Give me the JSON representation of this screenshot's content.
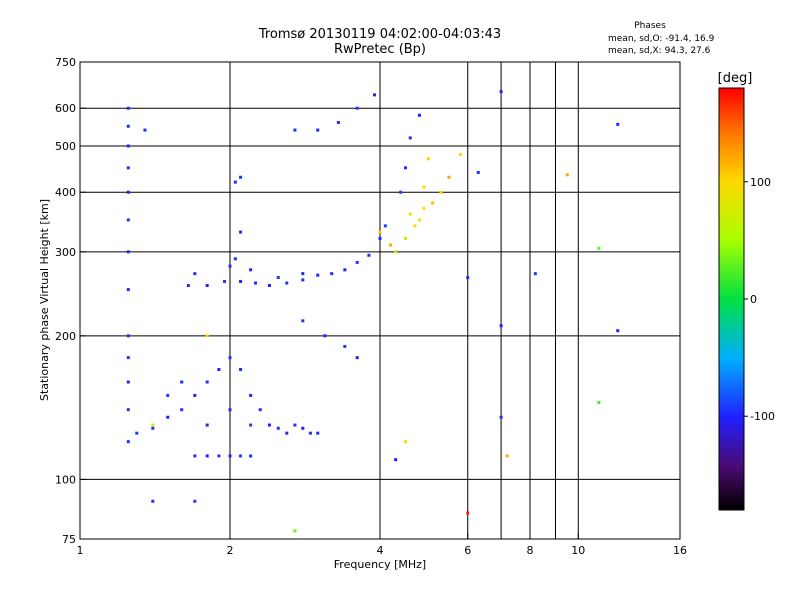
{
  "chart_data": {
    "type": "scatter",
    "title": "Tromsø 20130119 04:02:00-04:03:43",
    "subtitle": "RwPretec (Bp)",
    "xlabel": "Frequency [MHz]",
    "ylabel": "Stationary phase Virtual Height [km]",
    "x_scale": "log",
    "y_scale": "log",
    "xlim": [
      1,
      16
    ],
    "ylim": [
      75,
      750
    ],
    "x_ticks": [
      1,
      2,
      4,
      6,
      8,
      10,
      16
    ],
    "x_tick_labels": [
      "1",
      "2",
      "4",
      "6",
      "8",
      "10",
      "16"
    ],
    "x_grid": [
      2,
      4,
      6,
      7,
      8,
      9,
      10
    ],
    "y_ticks": [
      75,
      100,
      200,
      300,
      400,
      500,
      600,
      750
    ],
    "y_tick_labels": [
      "75",
      "100",
      "200",
      "300",
      "400",
      "500",
      "600",
      "750"
    ],
    "y_grid": [
      100,
      200,
      300,
      400,
      500,
      600
    ],
    "grid": true,
    "stats": {
      "heading": "Phases",
      "line_o": "mean, sd,O: -91.4, 16.9",
      "line_x": "mean, sd,X:  94.3, 27.6"
    },
    "colorbar": {
      "label": "[deg]",
      "min": -180,
      "max": 180,
      "ticks": [
        100,
        0,
        -100
      ],
      "tick_labels": [
        "100",
        "0",
        "-100"
      ]
    },
    "series": [
      {
        "color_mode": "phase",
        "points": [
          [
            1.7,
            112,
            -95
          ],
          [
            1.8,
            112,
            -100
          ],
          [
            1.9,
            112,
            -92
          ],
          [
            2.0,
            112,
            -98
          ],
          [
            2.1,
            112,
            -90
          ],
          [
            2.2,
            112,
            -96
          ],
          [
            1.3,
            125,
            -90
          ],
          [
            1.4,
            128,
            -95
          ],
          [
            1.5,
            135,
            -100
          ],
          [
            1.6,
            140,
            -92
          ],
          [
            1.7,
            150,
            -98
          ],
          [
            1.8,
            160,
            -95
          ],
          [
            1.9,
            170,
            -100
          ],
          [
            2.0,
            180,
            -92
          ],
          [
            2.1,
            170,
            -96
          ],
          [
            2.2,
            150,
            -98
          ],
          [
            2.3,
            140,
            -94
          ],
          [
            2.4,
            130,
            -100
          ],
          [
            2.5,
            128,
            -92
          ],
          [
            2.6,
            125,
            -98
          ],
          [
            2.7,
            130,
            -95
          ],
          [
            2.8,
            128,
            -100
          ],
          [
            2.9,
            125,
            -92
          ],
          [
            3.0,
            125,
            -96
          ],
          [
            1.6,
            160,
            -95
          ],
          [
            1.5,
            150,
            -92
          ],
          [
            1.8,
            130,
            -98
          ],
          [
            2.0,
            140,
            -95
          ],
          [
            2.2,
            130,
            -90
          ],
          [
            1.65,
            255,
            -95
          ],
          [
            1.8,
            255,
            -100
          ],
          [
            1.95,
            260,
            -92
          ],
          [
            2.1,
            260,
            -98
          ],
          [
            2.25,
            258,
            -95
          ],
          [
            2.4,
            255,
            -100
          ],
          [
            2.6,
            258,
            -92
          ],
          [
            2.8,
            262,
            -96
          ],
          [
            3.0,
            268,
            -98
          ],
          [
            3.2,
            270,
            -94
          ],
          [
            3.4,
            275,
            -100
          ],
          [
            3.6,
            285,
            -92
          ],
          [
            3.8,
            295,
            -98
          ],
          [
            4.0,
            320,
            -95
          ],
          [
            4.1,
            340,
            -90
          ],
          [
            1.7,
            270,
            -96
          ],
          [
            2.0,
            280,
            -95
          ],
          [
            2.2,
            275,
            -98
          ],
          [
            2.5,
            265,
            -92
          ],
          [
            2.8,
            270,
            -100
          ],
          [
            2.05,
            290,
            -95
          ],
          [
            2.1,
            330,
            -98
          ],
          [
            2.05,
            420,
            -95
          ],
          [
            2.1,
            430,
            -92
          ],
          [
            4.3,
            300,
            60
          ],
          [
            4.5,
            320,
            80
          ],
          [
            4.7,
            340,
            95
          ],
          [
            4.9,
            370,
            100
          ],
          [
            5.1,
            380,
            110
          ],
          [
            5.3,
            400,
            105
          ],
          [
            5.5,
            430,
            120
          ],
          [
            5.8,
            480,
            100
          ],
          [
            4.6,
            360,
            90
          ],
          [
            4.8,
            350,
            100
          ],
          [
            4.4,
            400,
            -90
          ],
          [
            4.5,
            450,
            -95
          ],
          [
            4.8,
            580,
            -100
          ],
          [
            4.6,
            520,
            -92
          ],
          [
            2.7,
            540,
            -95
          ],
          [
            3.0,
            540,
            -98
          ],
          [
            3.3,
            560,
            -95
          ],
          [
            3.6,
            600,
            -92
          ],
          [
            3.9,
            640,
            -100
          ],
          [
            1.25,
            600,
            -95
          ],
          [
            1.25,
            550,
            -92
          ],
          [
            1.25,
            500,
            -98
          ],
          [
            1.25,
            450,
            -95
          ],
          [
            1.25,
            400,
            -100
          ],
          [
            1.25,
            350,
            -92
          ],
          [
            1.25,
            300,
            -96
          ],
          [
            1.25,
            250,
            -98
          ],
          [
            1.25,
            200,
            -95
          ],
          [
            1.25,
            180,
            -92
          ],
          [
            1.25,
            160,
            -100
          ],
          [
            1.25,
            140,
            -96
          ],
          [
            1.25,
            120,
            -95
          ],
          [
            2.8,
            215,
            -95
          ],
          [
            3.1,
            200,
            -98
          ],
          [
            3.4,
            190,
            -92
          ],
          [
            3.6,
            180,
            -100
          ],
          [
            6.0,
            265,
            -95
          ],
          [
            6.3,
            440,
            -92
          ],
          [
            7.0,
            650,
            -98
          ],
          [
            7.0,
            210,
            -100
          ],
          [
            7.0,
            135,
            -95
          ],
          [
            8.2,
            270,
            -92
          ],
          [
            11.0,
            305,
            30
          ],
          [
            11.0,
            145,
            20
          ],
          [
            12.0,
            555,
            -95
          ],
          [
            12.0,
            205,
            -98
          ],
          [
            9.5,
            435,
            120
          ],
          [
            6.0,
            85,
            170
          ],
          [
            1.4,
            90,
            -95
          ],
          [
            1.7,
            90,
            -92
          ],
          [
            2.7,
            78,
            30
          ],
          [
            4.0,
            330,
            110
          ],
          [
            4.2,
            310,
            120
          ],
          [
            1.35,
            540,
            -95
          ],
          [
            5.0,
            470,
            100
          ],
          [
            4.9,
            410,
            95
          ],
          [
            1.4,
            130,
            60
          ],
          [
            1.8,
            200,
            100
          ],
          [
            4.5,
            120,
            100
          ],
          [
            7.2,
            112,
            120
          ],
          [
            4.3,
            110,
            -100
          ]
        ]
      }
    ]
  }
}
